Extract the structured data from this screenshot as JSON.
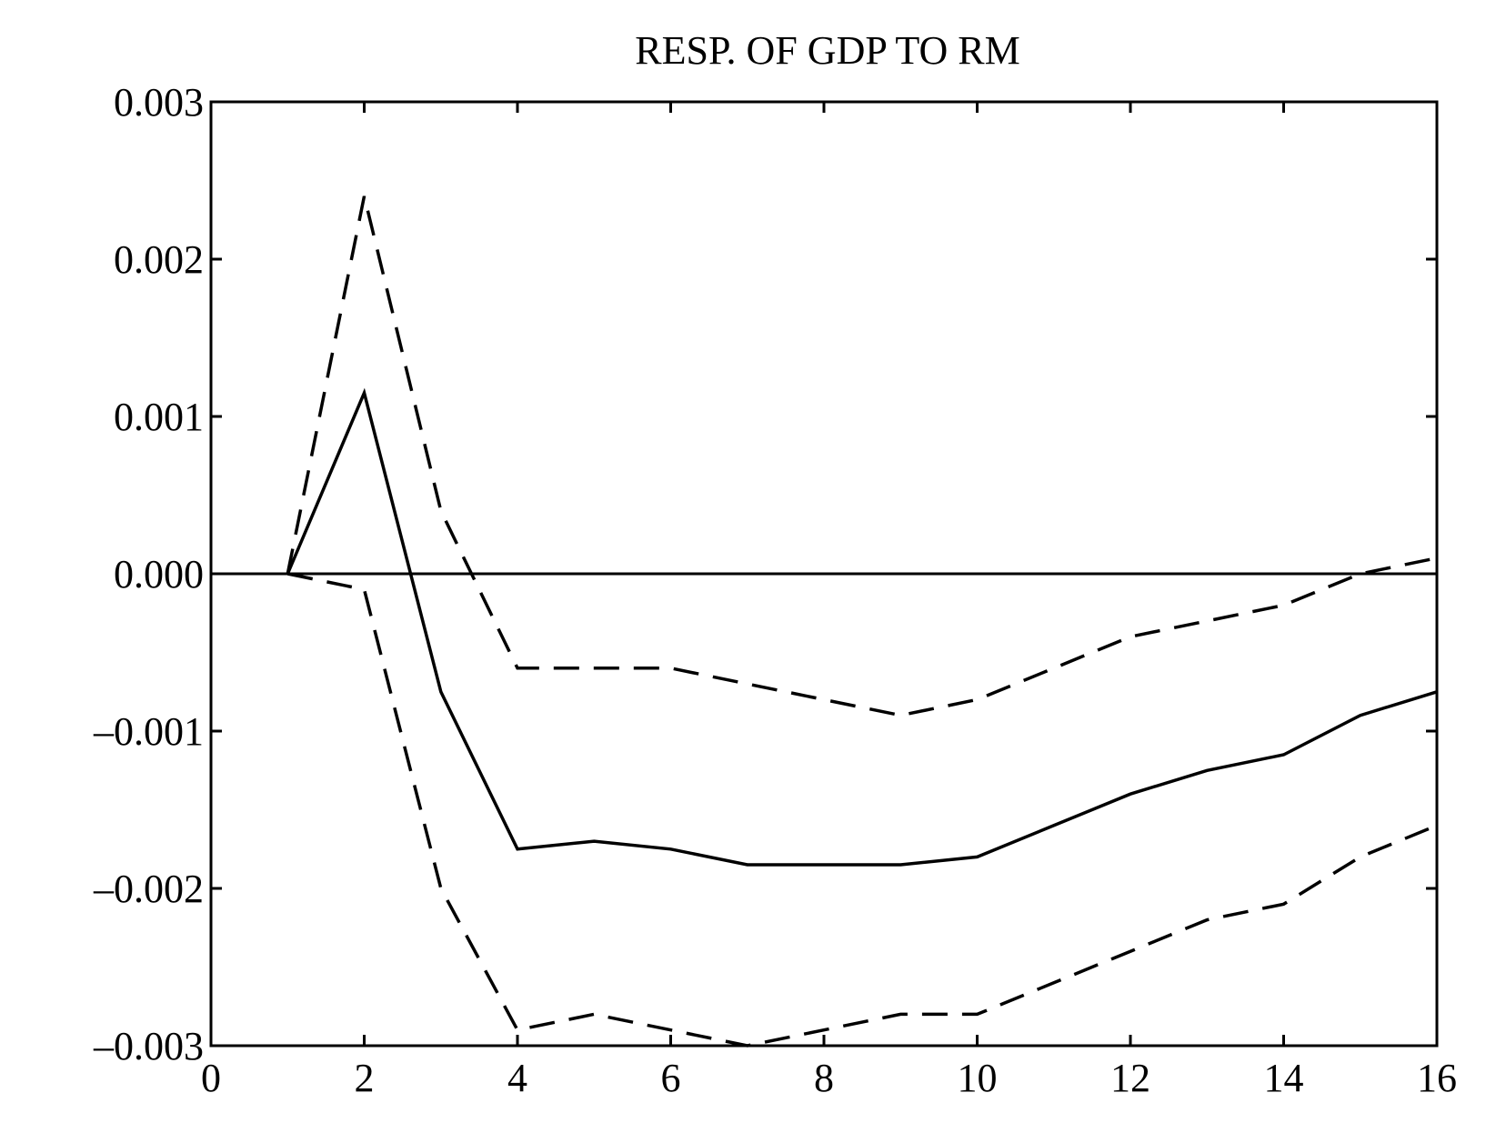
{
  "chart_data": {
    "type": "line",
    "title": "RESP. OF GDP TO RM",
    "xlabel": "",
    "ylabel": "",
    "xlim": [
      0,
      16
    ],
    "ylim": [
      -0.003,
      0.003
    ],
    "x_ticks": [
      0,
      2,
      4,
      6,
      8,
      10,
      12,
      14,
      16
    ],
    "x_tick_labels": [
      "0",
      "2",
      "4",
      "6",
      "8",
      "10",
      "12",
      "14",
      "16"
    ],
    "y_ticks": [
      -0.003,
      -0.002,
      -0.001,
      0.0,
      0.001,
      0.002,
      0.003
    ],
    "y_tick_labels": [
      "–0.003",
      "–0.002",
      "–0.001",
      "0.000",
      "0.001",
      "0.002",
      "0.003"
    ],
    "grid": false,
    "legend": "none",
    "reference_line_y": 0.0,
    "x": [
      1,
      2,
      3,
      4,
      5,
      6,
      7,
      8,
      9,
      10,
      11,
      12,
      13,
      14,
      15,
      16
    ],
    "series": [
      {
        "style": "solid",
        "color": "#000000",
        "values": [
          0.0,
          0.00115,
          -0.00075,
          -0.00175,
          -0.0017,
          -0.00175,
          -0.00185,
          -0.00185,
          -0.00185,
          -0.0018,
          -0.0016,
          -0.0014,
          -0.00125,
          -0.00115,
          -0.0009,
          -0.00075
        ]
      },
      {
        "style": "dashed",
        "color": "#000000",
        "values": [
          0.0,
          0.0024,
          0.0004,
          -0.0006,
          -0.0006,
          -0.0006,
          -0.0007,
          -0.0008,
          -0.0009,
          -0.0008,
          -0.0006,
          -0.0004,
          -0.0003,
          -0.0002,
          0.0,
          0.0001
        ]
      },
      {
        "style": "dashed",
        "color": "#000000",
        "values": [
          0.0,
          -0.0001,
          -0.002,
          -0.0029,
          -0.0028,
          -0.0029,
          -0.003,
          -0.0029,
          -0.0028,
          -0.0028,
          -0.0026,
          -0.0024,
          -0.0022,
          -0.0021,
          -0.0018,
          -0.0016
        ]
      }
    ]
  }
}
